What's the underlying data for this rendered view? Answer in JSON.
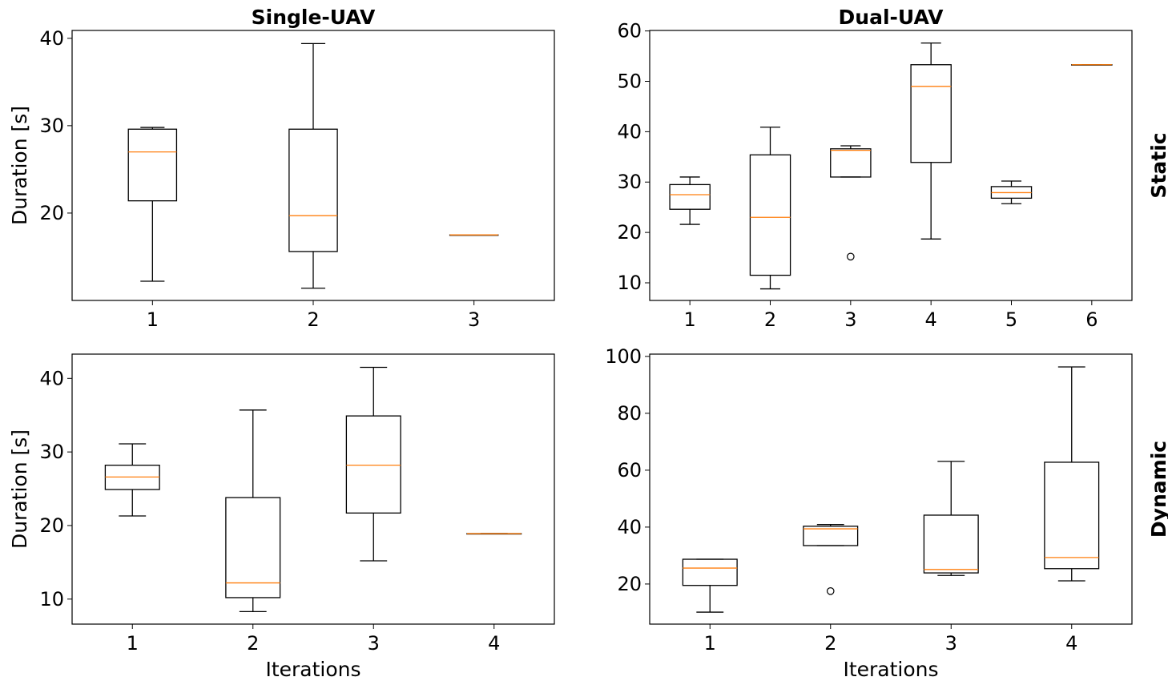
{
  "chart_data": [
    {
      "type": "box",
      "title": "Single-UAV",
      "row_label": "",
      "xlabel": "",
      "ylabel": "Duration [s]",
      "categories": [
        "1",
        "2",
        "3"
      ],
      "ylim": [
        10.0,
        40.9
      ],
      "yticks": [
        20,
        30,
        40
      ],
      "boxes": [
        {
          "whislo": 12.2,
          "q1": 21.4,
          "med": 27.0,
          "q3": 29.6,
          "whishi": 29.8,
          "fliers": []
        },
        {
          "whislo": 11.4,
          "q1": 15.6,
          "med": 19.7,
          "q3": 29.6,
          "whishi": 39.4,
          "fliers": []
        },
        {
          "whislo": 17.5,
          "q1": 17.5,
          "med": 17.5,
          "q3": 17.5,
          "whishi": 17.5,
          "fliers": []
        }
      ]
    },
    {
      "type": "box",
      "title": "Dual-UAV",
      "row_label": "Static",
      "xlabel": "",
      "ylabel": "",
      "categories": [
        "1",
        "2",
        "3",
        "4",
        "5",
        "6"
      ],
      "ylim": [
        6.5,
        60.1
      ],
      "yticks": [
        10,
        20,
        30,
        40,
        50,
        60
      ],
      "boxes": [
        {
          "whislo": 21.6,
          "q1": 24.6,
          "med": 27.5,
          "q3": 29.5,
          "whishi": 31.0,
          "fliers": []
        },
        {
          "whislo": 8.8,
          "q1": 11.5,
          "med": 23.0,
          "q3": 35.4,
          "whishi": 40.9,
          "fliers": []
        },
        {
          "whislo": 31.0,
          "q1": 31.0,
          "med": 36.3,
          "q3": 36.6,
          "whishi": 37.2,
          "fliers": [
            15.2
          ]
        },
        {
          "whislo": 18.7,
          "q1": 33.9,
          "med": 49.0,
          "q3": 53.3,
          "whishi": 57.6,
          "fliers": []
        },
        {
          "whislo": 25.7,
          "q1": 26.8,
          "med": 27.9,
          "q3": 29.1,
          "whishi": 30.2,
          "fliers": []
        },
        {
          "whislo": 53.3,
          "q1": 53.3,
          "med": 53.3,
          "q3": 53.3,
          "whishi": 53.3,
          "fliers": []
        }
      ]
    },
    {
      "type": "box",
      "title": "",
      "row_label": "",
      "xlabel": "Iterations",
      "ylabel": "Duration [s]",
      "categories": [
        "1",
        "2",
        "3",
        "4"
      ],
      "ylim": [
        6.6,
        43.3
      ],
      "yticks": [
        10,
        20,
        30,
        40
      ],
      "boxes": [
        {
          "whislo": 21.3,
          "q1": 24.9,
          "med": 26.6,
          "q3": 28.2,
          "whishi": 31.1,
          "fliers": []
        },
        {
          "whislo": 8.3,
          "q1": 10.2,
          "med": 12.2,
          "q3": 23.8,
          "whishi": 35.7,
          "fliers": []
        },
        {
          "whislo": 15.2,
          "q1": 21.7,
          "med": 28.2,
          "q3": 34.9,
          "whishi": 41.5,
          "fliers": []
        },
        {
          "whislo": 18.9,
          "q1": 18.9,
          "med": 18.9,
          "q3": 18.9,
          "whishi": 18.9,
          "fliers": []
        }
      ]
    },
    {
      "type": "box",
      "title": "",
      "row_label": "Dynamic",
      "xlabel": "Iterations",
      "ylabel": "",
      "categories": [
        "1",
        "2",
        "3",
        "4"
      ],
      "ylim": [
        5.9,
        100.8
      ],
      "yticks": [
        20,
        40,
        60,
        80,
        100
      ],
      "boxes": [
        {
          "whislo": 10.1,
          "q1": 19.5,
          "med": 25.6,
          "q3": 28.7,
          "whishi": 28.7,
          "fliers": []
        },
        {
          "whislo": 33.5,
          "q1": 33.5,
          "med": 39.4,
          "q3": 40.3,
          "whishi": 40.9,
          "fliers": [
            17.5
          ]
        },
        {
          "whislo": 23.0,
          "q1": 23.9,
          "med": 25.1,
          "q3": 44.2,
          "whishi": 63.1,
          "fliers": []
        },
        {
          "whislo": 21.1,
          "q1": 25.4,
          "med": 29.3,
          "q3": 62.8,
          "whishi": 96.3,
          "fliers": []
        }
      ]
    }
  ],
  "colors": {
    "box": "#000000",
    "median": "#ff7f0e"
  }
}
